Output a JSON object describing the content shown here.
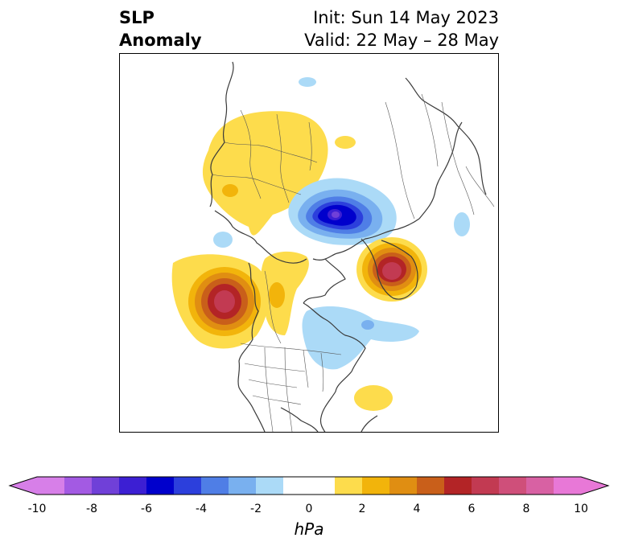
{
  "title": {
    "line1_left": "SLP",
    "line2_left": "Anomaly",
    "line1_right": "Init: Sun 14 May 2023",
    "line2_right": "Valid: 22 May – 28 May"
  },
  "colorbar": {
    "unit": "hPa",
    "tick_labels": [
      "-10",
      "-8",
      "-6",
      "-4",
      "-2",
      "0",
      "2",
      "4",
      "6",
      "8",
      "10"
    ],
    "colors": {
      "neg10": "#d77fe8",
      "neg9": "#a35ae3",
      "neg8": "#7040d8",
      "neg7": "#3c1fd3",
      "neg6": "#0000cc",
      "neg5": "#2c3fdc",
      "neg4": "#4f7ee6",
      "neg3": "#79b0ef",
      "neg2": "#abdaf7",
      "zero": "#ffffff",
      "pos1": "#fddc4c",
      "pos2": "#f2b40b",
      "pos3": "#e08e12",
      "pos4": "#c95f1a",
      "pos5": "#b32426",
      "pos6": "#c23a52",
      "pos7": "#cf4f7a",
      "pos8": "#d861a3",
      "pos9": "#e878d7"
    }
  },
  "map": {
    "projection": "north-polar-stereographic",
    "features": [
      "coastlines",
      "country-borders",
      "us-state-borders"
    ]
  }
}
